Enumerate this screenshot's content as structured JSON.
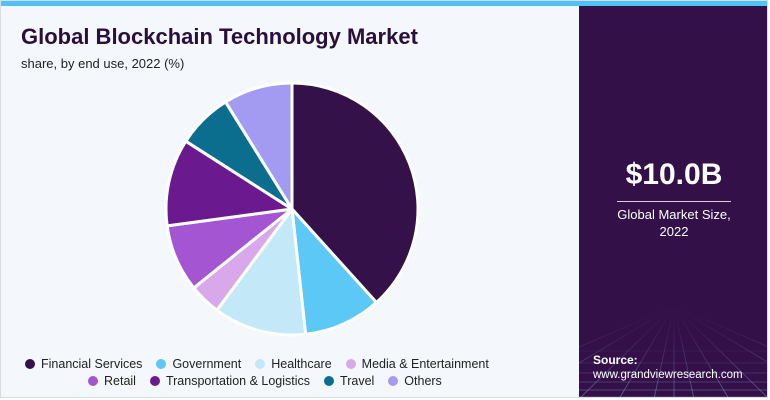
{
  "title": "Global Blockchain Technology Market",
  "subtitle": "share, by end use, 2022 (%)",
  "market": {
    "value": "$10.0B",
    "label_line1": "Global Market Size,",
    "label_line2": "2022"
  },
  "source": {
    "title": "Source:",
    "url": "www.grandviewresearch.com"
  },
  "colors": {
    "accent": "#4fc3f7",
    "sidebar": "#331048"
  },
  "chart_data": {
    "type": "pie",
    "title": "Global Blockchain Technology Market",
    "subtitle": "share, by end use, 2022 (%)",
    "start": "12 o'clock, clockwise",
    "legend_position": "bottom",
    "slices": [
      {
        "label": "Financial Services",
        "value": 37.7,
        "color": "#35114a"
      },
      {
        "label": "Government",
        "value": 9.8,
        "color": "#5bc8f5"
      },
      {
        "label": "Healthcare",
        "value": 11.7,
        "color": "#c3e8f8"
      },
      {
        "label": "Media & Entertainment",
        "value": 4.0,
        "color": "#d9a8ea"
      },
      {
        "label": "Retail",
        "value": 8.5,
        "color": "#a455d1"
      },
      {
        "label": "Transportation & Logistics",
        "value": 11.0,
        "color": "#6a1a8e"
      },
      {
        "label": "Travel",
        "value": 7.0,
        "color": "#0b6e8f"
      },
      {
        "label": "Others",
        "value": 8.7,
        "color": "#a39bf2"
      }
    ],
    "legend_rows": [
      [
        0,
        1,
        2,
        3
      ],
      [
        4,
        5,
        6,
        7
      ]
    ]
  }
}
